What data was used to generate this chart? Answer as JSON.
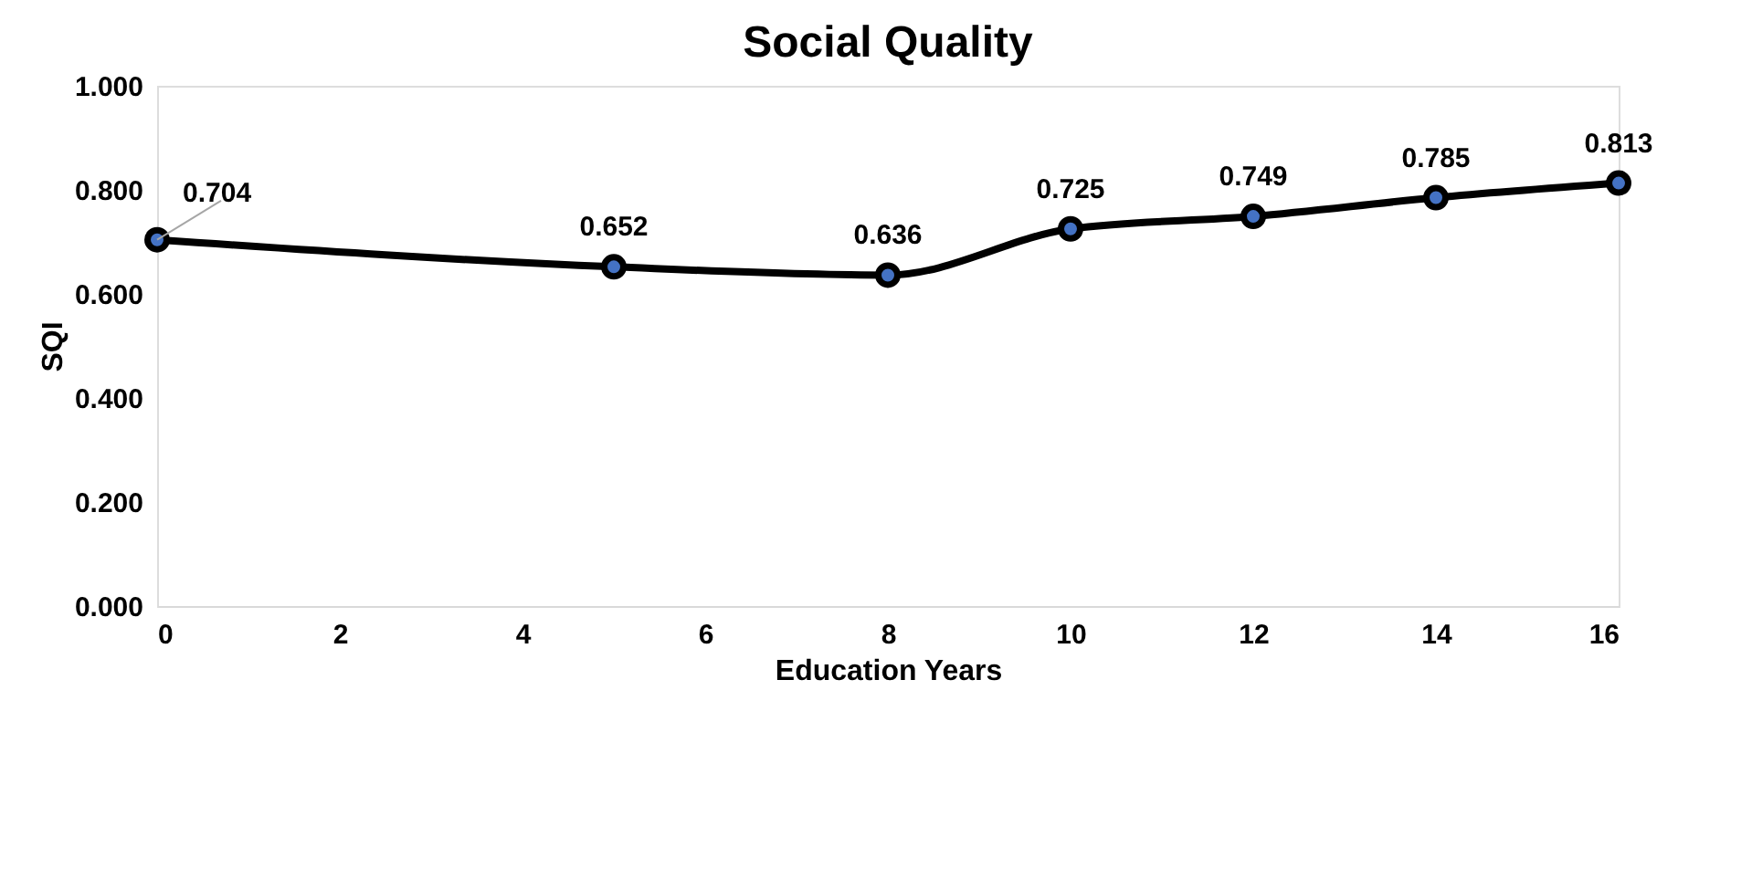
{
  "chart_data": {
    "type": "line",
    "title": "Social Quality",
    "xlabel": "Education Years",
    "ylabel": "SQI",
    "x": [
      0,
      5,
      8,
      10,
      12,
      14,
      16
    ],
    "series": [
      {
        "color": "#000000",
        "values": [
          0.704,
          0.652,
          0.636,
          0.725,
          0.749,
          0.785,
          0.813
        ]
      }
    ],
    "xlim": [
      0,
      16
    ],
    "xticks": [
      0,
      2,
      4,
      6,
      8,
      10,
      12,
      14,
      16
    ],
    "ylim": [
      0,
      1
    ],
    "yticks": [
      {
        "value": 0,
        "label": "0.000"
      },
      {
        "value": 0.2,
        "label": "0.200"
      },
      {
        "value": 0.4,
        "label": "0.400"
      },
      {
        "value": 0.6,
        "label": "0.600"
      },
      {
        "value": 0.8,
        "label": "0.800"
      },
      {
        "value": 1,
        "label": "1.000"
      }
    ],
    "marker": "circle",
    "data_labels": true,
    "grid": false
  }
}
